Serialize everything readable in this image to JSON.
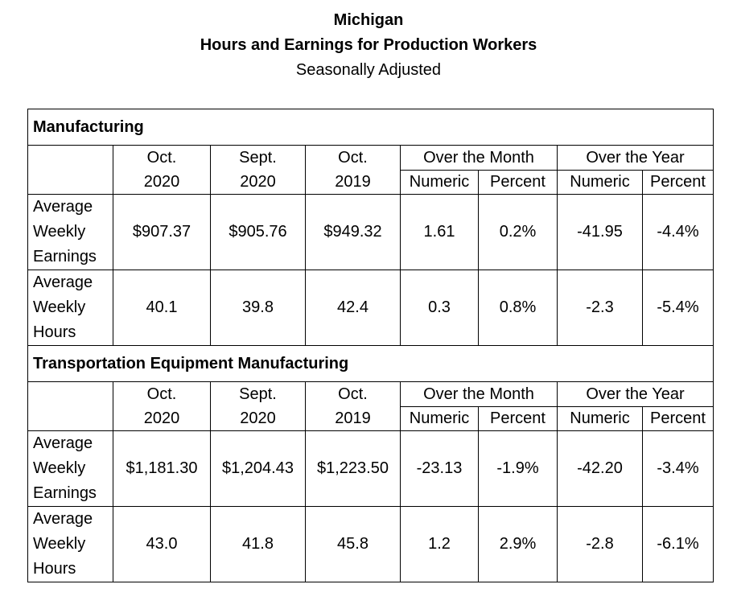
{
  "title": {
    "line1": "Michigan",
    "line2": "Hours and Earnings for Production Workers",
    "line3": "Seasonally Adjusted"
  },
  "headers": {
    "col1_top": "Oct.",
    "col1_bot": "2020",
    "col2_top": "Sept.",
    "col2_bot": "2020",
    "col3_top": "Oct.",
    "col3_bot": "2019",
    "over_month": "Over the Month",
    "over_year": "Over the Year",
    "numeric": "Numeric",
    "percent": "Percent"
  },
  "sections": [
    {
      "name": "Manufacturing",
      "rows": [
        {
          "label": [
            "Average",
            "Weekly",
            "Earnings"
          ],
          "values": [
            "$907.37",
            "$905.76",
            "$949.32",
            "1.61",
            "0.2%",
            "-41.95",
            "-4.4%"
          ]
        },
        {
          "label": [
            "Average",
            "Weekly",
            "Hours"
          ],
          "values": [
            "40.1",
            "39.8",
            "42.4",
            "0.3",
            "0.8%",
            "-2.3",
            "-5.4%"
          ]
        }
      ]
    },
    {
      "name": "Transportation Equipment Manufacturing",
      "rows": [
        {
          "label": [
            "Average",
            "Weekly",
            "Earnings"
          ],
          "values": [
            "$1,181.30",
            "$1,204.43",
            "$1,223.50",
            "-23.13",
            "-1.9%",
            "-42.20",
            "-3.4%"
          ]
        },
        {
          "label": [
            "Average",
            "Weekly",
            "Hours"
          ],
          "values": [
            "43.0",
            "41.8",
            "45.8",
            "1.2",
            "2.9%",
            "-2.8",
            "-6.1%"
          ]
        }
      ]
    }
  ]
}
